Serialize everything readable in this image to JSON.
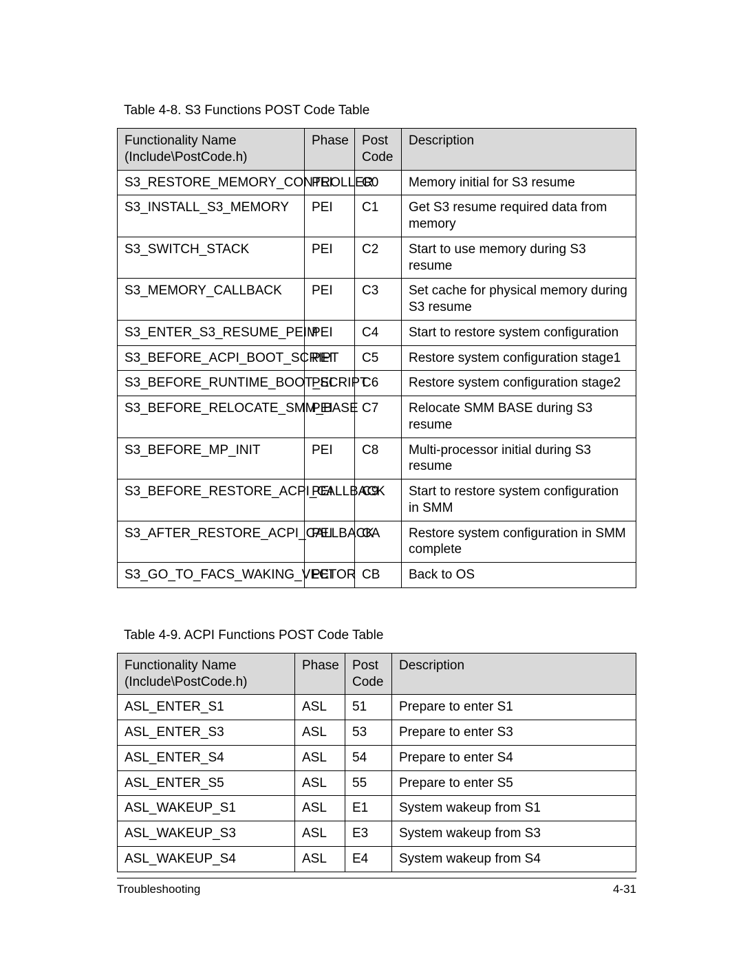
{
  "page": {
    "footer_left": "Troubleshooting",
    "footer_right": "4-31"
  },
  "table1": {
    "caption": "Table 4-8.   S3 Functions POST Code Table",
    "type": "table",
    "header_bg": "#d9d9d9",
    "border_color": "#000000",
    "font_family": "Arial",
    "font_size_pt": 14,
    "columns": [
      "Functionality Name (Include\\PostCode.h)",
      "Phase",
      "Post Code",
      "Description"
    ],
    "rows": [
      [
        "S3_RESTORE_MEMORY_CONTROLLER",
        "PEI",
        "C0",
        "Memory initial for S3 resume"
      ],
      [
        "S3_INSTALL_S3_MEMORY",
        "PEI",
        "C1",
        "Get S3 resume required data from memory"
      ],
      [
        "S3_SWITCH_STACK",
        "PEI",
        "C2",
        "Start to use memory during S3 resume"
      ],
      [
        "S3_MEMORY_CALLBACK",
        "PEI",
        "C3",
        "Set cache for physical memory during S3 resume"
      ],
      [
        "S3_ENTER_S3_RESUME_PEIM",
        "PEI",
        "C4",
        "Start to restore system configuration"
      ],
      [
        "S3_BEFORE_ACPI_BOOT_SCRIPT",
        "PEI",
        "C5",
        "Restore system configuration stage1"
      ],
      [
        "S3_BEFORE_RUNTIME_BOOT_SCRIPT",
        "PEI",
        "C6",
        "Restore system configuration stage2"
      ],
      [
        "S3_BEFORE_RELOCATE_SMM_BASE",
        "PEI",
        "C7",
        "Relocate SMM BASE during S3 resume"
      ],
      [
        "S3_BEFORE_MP_INIT",
        "PEI",
        "C8",
        "Multi-processor initial during S3 resume"
      ],
      [
        "S3_BEFORE_RESTORE_ACPI_CALLBACK",
        "PEI",
        "C9",
        "Start to restore system configuration in SMM"
      ],
      [
        "S3_AFTER_RESTORE_ACPI_CALLBACK",
        "PEI",
        "CA",
        "Restore system configuration in SMM complete"
      ],
      [
        "S3_GO_TO_FACS_WAKING_VECTOR",
        "PEI",
        "CB",
        "Back to OS"
      ]
    ]
  },
  "table2": {
    "caption": "Table 4-9.   ACPI Functions POST Code Table",
    "type": "table",
    "header_bg": "#d9d9d9",
    "border_color": "#000000",
    "font_family": "Arial",
    "font_size_pt": 14,
    "columns": [
      "Functionality Name (Include\\PostCode.h)",
      "Phase",
      "Post Code",
      "Description"
    ],
    "rows": [
      [
        "ASL_ENTER_S1",
        "ASL",
        "51",
        "Prepare to enter S1"
      ],
      [
        "ASL_ENTER_S3",
        "ASL",
        "53",
        "Prepare to enter S3"
      ],
      [
        "ASL_ENTER_S4",
        "ASL",
        "54",
        "Prepare to enter S4"
      ],
      [
        "ASL_ENTER_S5",
        "ASL",
        "55",
        "Prepare to enter S5"
      ],
      [
        "ASL_WAKEUP_S1",
        "ASL",
        "E1",
        "System wakeup from S1"
      ],
      [
        "ASL_WAKEUP_S3",
        "ASL",
        "E3",
        "System wakeup from S3"
      ],
      [
        "ASL_WAKEUP_S4",
        "ASL",
        "E4",
        "System wakeup from S4"
      ]
    ]
  }
}
